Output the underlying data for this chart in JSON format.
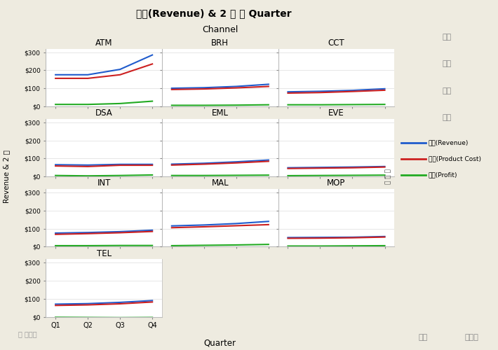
{
  "title": "평균(Revenue) & 2 등 대 Quarter",
  "col_header": "Channel",
  "x_label": "Quarter",
  "y_label": "Revenue & 2 등",
  "quarters": [
    "Q1",
    "Q2",
    "Q3",
    "Q4"
  ],
  "grid_layout": [
    [
      "ATM",
      "BRH",
      "CCT"
    ],
    [
      "DSA",
      "EML",
      "EVE"
    ],
    [
      "INT",
      "MAL",
      "MOP"
    ],
    [
      "TEL",
      "",
      ""
    ]
  ],
  "data": {
    "ATM": {
      "revenue": [
        175,
        175,
        205,
        285
      ],
      "product_cost": [
        155,
        155,
        175,
        235
      ],
      "profit": [
        10,
        10,
        15,
        28
      ]
    },
    "BRH": {
      "revenue": [
        100,
        103,
        110,
        122
      ],
      "product_cost": [
        93,
        96,
        102,
        110
      ],
      "profit": [
        5,
        5,
        6,
        8
      ]
    },
    "CCT": {
      "revenue": [
        80,
        83,
        88,
        97
      ],
      "product_cost": [
        73,
        76,
        82,
        89
      ],
      "profit": [
        8,
        8,
        9,
        10
      ]
    },
    "DSA": {
      "revenue": [
        65,
        63,
        67,
        67
      ],
      "product_cost": [
        58,
        55,
        62,
        62
      ],
      "profit": [
        5,
        3,
        5,
        8
      ]
    },
    "EML": {
      "revenue": [
        68,
        73,
        81,
        91
      ],
      "product_cost": [
        63,
        68,
        75,
        84
      ],
      "profit": [
        5,
        5,
        6,
        7
      ]
    },
    "EVE": {
      "revenue": [
        48,
        50,
        52,
        55
      ],
      "product_cost": [
        44,
        46,
        48,
        52
      ],
      "profit": [
        4,
        5,
        6,
        7
      ]
    },
    "INT": {
      "revenue": [
        75,
        78,
        83,
        91
      ],
      "product_cost": [
        68,
        72,
        77,
        84
      ],
      "profit": [
        5,
        5,
        6,
        6
      ]
    },
    "MAL": {
      "revenue": [
        115,
        120,
        128,
        140
      ],
      "product_cost": [
        105,
        110,
        116,
        122
      ],
      "profit": [
        5,
        7,
        9,
        12
      ]
    },
    "MOP": {
      "revenue": [
        50,
        51,
        52,
        56
      ],
      "product_cost": [
        46,
        47,
        49,
        53
      ],
      "profit": [
        3,
        3,
        4,
        5
      ]
    },
    "TEL": {
      "revenue": [
        70,
        73,
        80,
        90
      ],
      "product_cost": [
        63,
        66,
        72,
        82
      ],
      "profit": [
        -3,
        -4,
        -5,
        -4
      ]
    }
  },
  "ylim": [
    0,
    320
  ],
  "yticks": [
    0,
    100,
    200,
    300
  ],
  "ytick_labels": [
    "$0",
    "$100",
    "$200",
    "$300"
  ],
  "color_revenue": "#1f5bcc",
  "color_product_cost": "#cc2020",
  "color_profit": "#22aa22",
  "bg_color": "#eeebe0",
  "header_color": "#dedad0",
  "panel_bg": "#ffffff",
  "right_panel_bg": "#e8e5dc",
  "legend_labels": [
    "평균(Revenue)",
    "평균(Product Cost)",
    "평균(Profit)"
  ],
  "right_buttons": [
    "증첩",
    "색상",
    "크기",
    "구간"
  ],
  "bottom_left_btn": "맵 셸이프",
  "bottom_right_btns": [
    "빈도",
    "페이지"
  ],
  "right_side_label": "사 년 도"
}
